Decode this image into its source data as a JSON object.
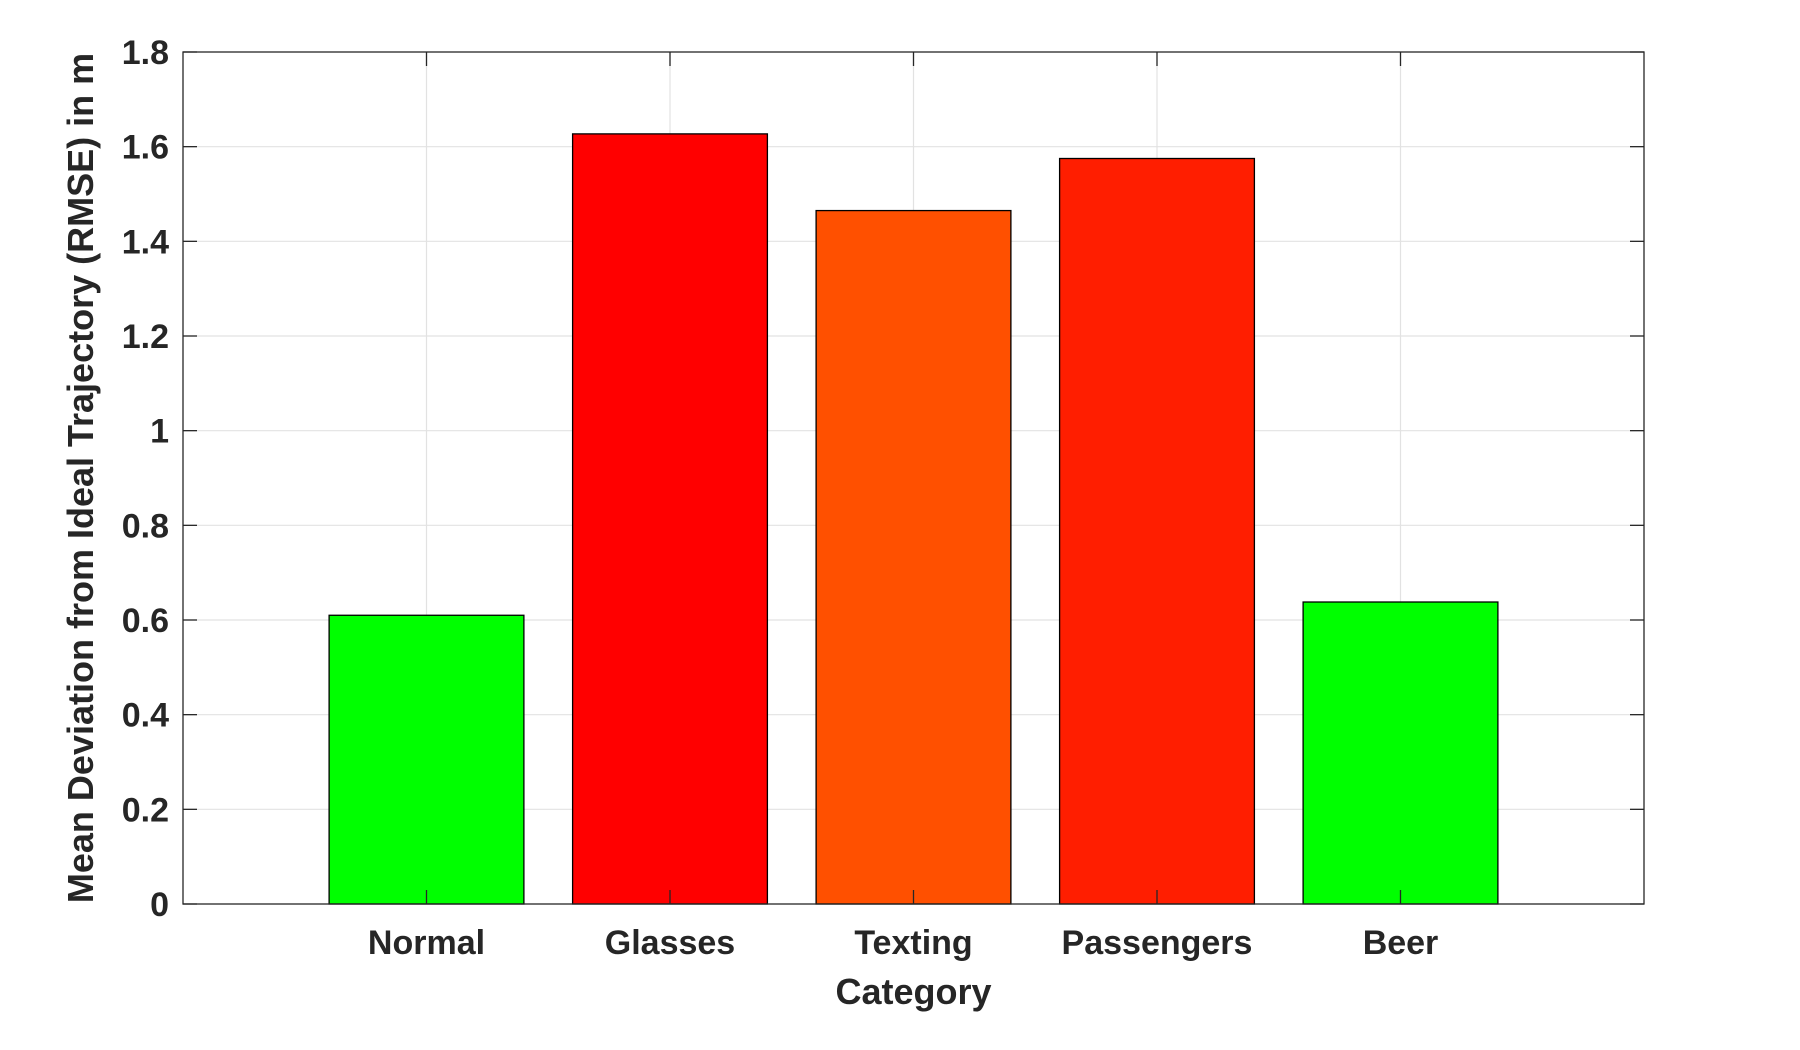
{
  "chart_data": {
    "type": "bar",
    "categories": [
      "Normal",
      "Glasses",
      "Texting",
      "Passengers",
      "Beer"
    ],
    "values": [
      0.61,
      1.627,
      1.465,
      1.575,
      0.638
    ],
    "colors": [
      "#00ff00",
      "#ff0000",
      "#ff5000",
      "#ff1e00",
      "#00ff00"
    ],
    "xlabel": "Category",
    "ylabel": "Mean Deviation from Ideal Trajectory (RMSE) in m",
    "ylim": [
      0,
      1.8
    ],
    "yticks": [
      0,
      0.2,
      0.4,
      0.6,
      0.8,
      1,
      1.2,
      1.4,
      1.6,
      1.8
    ],
    "ytick_labels": [
      "0",
      "0.2",
      "0.4",
      "0.6",
      "0.8",
      "1",
      "1.2",
      "1.4",
      "1.6",
      "1.8"
    ],
    "xlim": [
      0,
      6
    ],
    "grid": true,
    "legend": "none"
  }
}
